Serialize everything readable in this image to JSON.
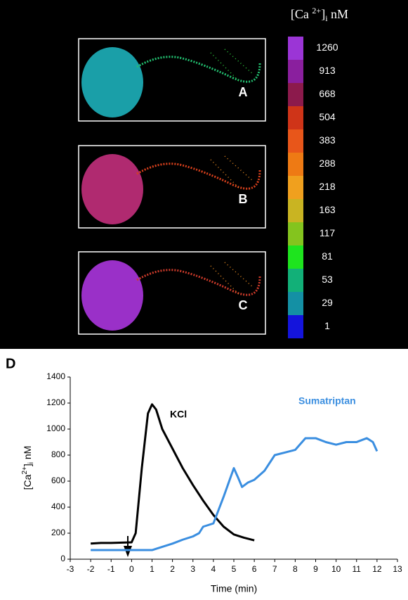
{
  "figure": {
    "colorbar": {
      "title": {
        "open": "[Ca ",
        "sup": "2+",
        "close": "]",
        "sub": "i",
        "unit": " nM"
      },
      "labels": [
        "1260",
        "913",
        "668",
        "504",
        "383",
        "288",
        "218",
        "163",
        "117",
        "81",
        "53",
        "29",
        "1"
      ],
      "colors": [
        "#9b35d6",
        "#8a1f9e",
        "#8c1a4c",
        "#cf3418",
        "#e8561a",
        "#ee7a14",
        "#f0a01e",
        "#c9b422",
        "#84c41e",
        "#1ee41e",
        "#12b078",
        "#1490a4",
        "#1414dc"
      ]
    },
    "panels": [
      "A",
      "B",
      "C"
    ],
    "panel_label": "D"
  },
  "chart_data": {
    "type": "line",
    "xlabel": "Time (min)",
    "ylabel": {
      "open": "[Ca",
      "sup": "2+",
      "close": "]",
      "sub": "i",
      "unit": " nM"
    },
    "xlim": [
      -3,
      13
    ],
    "xticks": [
      -3,
      -2,
      -1,
      0,
      1,
      2,
      3,
      4,
      5,
      6,
      7,
      8,
      9,
      10,
      11,
      12,
      13
    ],
    "ylim": [
      0,
      1400
    ],
    "yticks": [
      0,
      200,
      400,
      600,
      800,
      1000,
      1200,
      1400
    ],
    "series": [
      {
        "name": "KCl",
        "color": "#000000",
        "x": [
          -2,
          -1.5,
          -1,
          0,
          0.2,
          0.5,
          0.8,
          1,
          1.2,
          1.5,
          2,
          2.5,
          3,
          3.5,
          4,
          4.5,
          5,
          5.5,
          6
        ],
        "values": [
          120,
          125,
          125,
          130,
          200,
          700,
          1120,
          1190,
          1150,
          1000,
          850,
          700,
          570,
          450,
          340,
          250,
          190,
          165,
          145
        ]
      },
      {
        "name": "Sumatriptan",
        "color": "#3a8ee0",
        "x": [
          -2,
          -1,
          0,
          1,
          1.5,
          2,
          2.5,
          3,
          3.3,
          3.5,
          4,
          4.5,
          5,
          5.2,
          5.4,
          5.7,
          6,
          6.5,
          7,
          7.5,
          8,
          8.5,
          9,
          9.5,
          10,
          10.5,
          11,
          11.5,
          11.8,
          12
        ],
        "values": [
          70,
          70,
          70,
          70,
          95,
          120,
          150,
          175,
          200,
          250,
          275,
          480,
          700,
          630,
          555,
          590,
          610,
          680,
          800,
          820,
          840,
          930,
          930,
          900,
          880,
          900,
          900,
          930,
          900,
          830
        ]
      }
    ]
  }
}
